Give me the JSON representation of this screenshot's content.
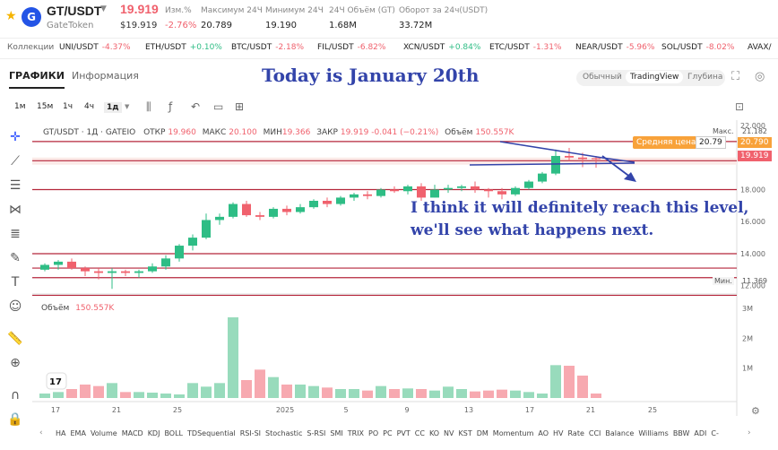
{
  "header": {
    "pair": "GT/USDT",
    "price": "19.919",
    "price_usd": "$19.919",
    "token": "GateToken",
    "stats": [
      {
        "label": "Изм.%",
        "value": "-2.76%"
      },
      {
        "label": "Максимум 24Ч",
        "value": "20.789"
      },
      {
        "label": "Минимум 24Ч",
        "value": "19.190"
      },
      {
        "label": "24Ч Объём (GT)",
        "value": "1.68M"
      },
      {
        "label": "Оборот за 24ч(USDT)",
        "value": "33.72M"
      }
    ]
  },
  "ticker": {
    "label": "Коллекции",
    "items": [
      {
        "pair": "UNI/USDT",
        "change": "-4.37%",
        "up": false
      },
      {
        "pair": "ETH/USDT",
        "change": "+0.10%",
        "up": true
      },
      {
        "pair": "BTC/USDT",
        "change": "-2.18%",
        "up": false
      },
      {
        "pair": "FIL/USDT",
        "change": "-6.82%",
        "up": false
      },
      {
        "pair": "XCN/USDT",
        "change": "+0.84%",
        "up": true
      },
      {
        "pair": "ETC/USDT",
        "change": "-1.31%",
        "up": false
      },
      {
        "pair": "NEAR/USDT",
        "change": "-5.96%",
        "up": false
      },
      {
        "pair": "SOL/USDT",
        "change": "-8.02%",
        "up": false
      },
      {
        "pair": "AVAX/",
        "change": "",
        "up": false
      }
    ]
  },
  "tabs": {
    "charts": "ГРАФИКИ",
    "info": "Информация"
  },
  "banner": "Today is January 20th",
  "view_modes": [
    "Обычный",
    "TradingView",
    "Глубина"
  ],
  "intervals": [
    "1м",
    "15м",
    "1ч",
    "4ч",
    "1д"
  ],
  "chart_header": {
    "symbol": "GT/USDT · 1Д · GATEIO",
    "open_label": "ОТКР",
    "open": "19.960",
    "high_label": "МАКС",
    "high": "20.100",
    "low_label": "МИН",
    "low": "19.366",
    "close_label": "ЗАКР",
    "close": "19.919",
    "change": "-0.041 (−0.21%)",
    "vol_label": "Объём",
    "vol": "150.557K"
  },
  "volume_header": {
    "label": "Объём",
    "value": "150.557K"
  },
  "annotation": "I think it will definitely reach this level, we'll see what happens next.",
  "price_axis": {
    "ticks": [
      "22.000",
      "20.000",
      "18.000",
      "16.000",
      "14.000",
      "12.000"
    ],
    "max_label": "Макс.",
    "max_value": "21.182",
    "avg_label": "Средняя цена",
    "avg_value": "20.79",
    "avg_tag": "20.790",
    "last_tag": "19.919",
    "min_label": "Мин.",
    "min_value": "11.369"
  },
  "volume_axis": {
    "ticks": [
      "3M",
      "2M",
      "1M"
    ]
  },
  "x_axis": {
    "ticks": [
      "17",
      "21",
      "25",
      "2025",
      "5",
      "9",
      "13",
      "17",
      "21",
      "25"
    ]
  },
  "indicators": [
    "HA",
    "EMA",
    "Volume",
    "MACD",
    "KDJ",
    "BOLL",
    "TDSequential",
    "RSI-SI",
    "Stochastic",
    "S-RSI",
    "SMI",
    "TRIX",
    "PO",
    "PC",
    "PVT",
    "CC",
    "KO",
    "NV",
    "KST",
    "DM",
    "Momentum",
    "AO",
    "HV",
    "Rate",
    "CCI",
    "Balance",
    "Williams",
    "BBW",
    "ADI",
    "C-RSI"
  ],
  "colors": {
    "up": "#2ebd85",
    "down": "#f0616d",
    "accent": "#3344aa",
    "highlight": "#fbeae8"
  },
  "chart_data": {
    "type": "candlestick",
    "ylim": [
      11.369,
      22.0
    ],
    "candles": [
      [
        13.0,
        13.4,
        12.9,
        13.3
      ],
      [
        13.3,
        13.6,
        13.0,
        13.5
      ],
      [
        13.5,
        13.7,
        13.0,
        13.1
      ],
      [
        13.1,
        13.2,
        12.6,
        12.9
      ],
      [
        12.9,
        13.1,
        12.4,
        12.8
      ],
      [
        12.8,
        13.1,
        11.8,
        12.9
      ],
      [
        12.9,
        13.0,
        12.6,
        12.8
      ],
      [
        12.8,
        13.0,
        12.5,
        12.9
      ],
      [
        12.9,
        13.4,
        12.8,
        13.2
      ],
      [
        13.2,
        13.9,
        13.0,
        13.7
      ],
      [
        13.7,
        14.6,
        13.5,
        14.5
      ],
      [
        14.5,
        15.2,
        14.2,
        15.0
      ],
      [
        15.0,
        16.5,
        14.9,
        16.1
      ],
      [
        16.1,
        16.5,
        15.8,
        16.3
      ],
      [
        16.3,
        17.2,
        16.2,
        17.1
      ],
      [
        17.1,
        17.3,
        16.3,
        16.4
      ],
      [
        16.4,
        16.6,
        16.1,
        16.3
      ],
      [
        16.3,
        16.9,
        16.2,
        16.8
      ],
      [
        16.8,
        17.0,
        16.4,
        16.6
      ],
      [
        16.6,
        17.1,
        16.5,
        16.9
      ],
      [
        16.9,
        17.4,
        16.8,
        17.3
      ],
      [
        17.3,
        17.5,
        16.9,
        17.1
      ],
      [
        17.1,
        17.6,
        17.0,
        17.5
      ],
      [
        17.5,
        17.8,
        17.3,
        17.7
      ],
      [
        17.7,
        17.9,
        17.4,
        17.6
      ],
      [
        17.6,
        18.1,
        17.5,
        18.0
      ],
      [
        18.0,
        18.2,
        17.8,
        17.9
      ],
      [
        17.9,
        18.3,
        17.7,
        18.2
      ],
      [
        18.2,
        18.4,
        17.3,
        17.5
      ],
      [
        17.5,
        18.3,
        17.5,
        18.0
      ],
      [
        18.0,
        18.3,
        17.8,
        18.1
      ],
      [
        18.1,
        18.3,
        17.9,
        18.2
      ],
      [
        18.2,
        18.5,
        17.8,
        18.0
      ],
      [
        18.0,
        18.1,
        17.5,
        17.9
      ],
      [
        17.9,
        18.1,
        17.4,
        17.7
      ],
      [
        17.7,
        18.2,
        17.6,
        18.1
      ],
      [
        18.1,
        18.6,
        18.0,
        18.5
      ],
      [
        18.5,
        19.1,
        18.4,
        19.0
      ],
      [
        19.0,
        20.5,
        18.9,
        20.1
      ],
      [
        20.1,
        20.6,
        19.8,
        20.0
      ],
      [
        20.0,
        20.3,
        19.4,
        19.9
      ],
      [
        19.96,
        20.1,
        19.366,
        19.919
      ]
    ],
    "volume_m": [
      0.15,
      0.2,
      0.3,
      0.45,
      0.4,
      0.5,
      0.2,
      0.2,
      0.18,
      0.15,
      0.12,
      0.5,
      0.38,
      0.5,
      2.7,
      0.6,
      0.95,
      0.7,
      0.45,
      0.45,
      0.4,
      0.35,
      0.3,
      0.3,
      0.25,
      0.4,
      0.3,
      0.32,
      0.3,
      0.25,
      0.38,
      0.3,
      0.22,
      0.25,
      0.28,
      0.25,
      0.2,
      0.15,
      1.1,
      1.08,
      0.75,
      0.15
    ],
    "horizontal_levels": [
      21.0,
      19.8,
      18.0,
      14.0,
      13.1,
      12.5,
      11.4
    ]
  }
}
